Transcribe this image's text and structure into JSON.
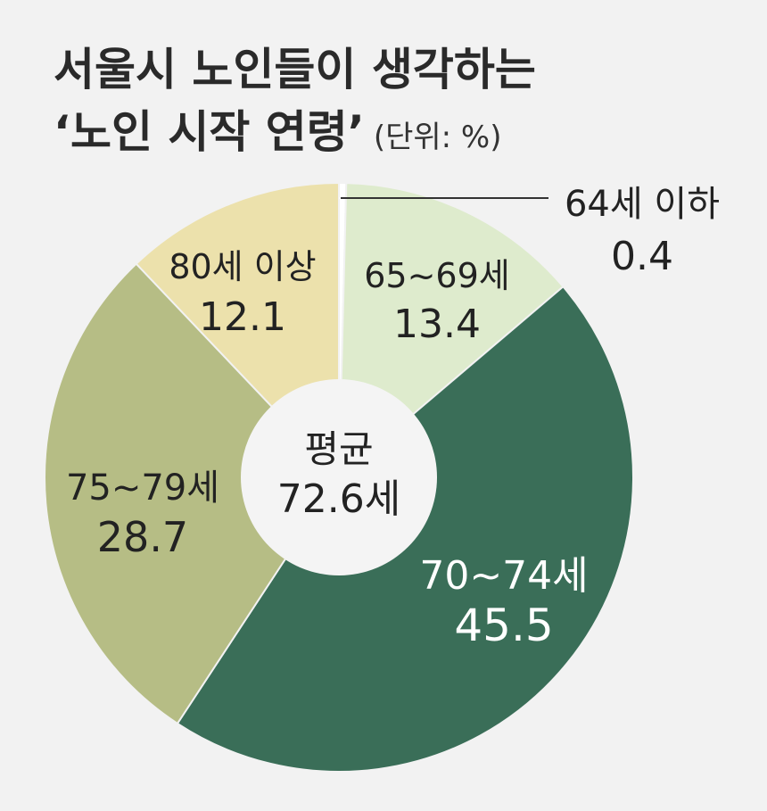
{
  "title_line1": "서울시 노인들이 생각하는",
  "title_line2": "‘노인 시작 연령’",
  "unit": "(단위: %)",
  "center": {
    "line1": "평균",
    "line2": "72.6세"
  },
  "chart_data": {
    "type": "pie",
    "title": "서울시 노인들이 생각하는 ‘노인 시작 연령’",
    "unit": "(단위: %)",
    "categories": [
      "64세 이하",
      "65~69세",
      "70~74세",
      "75~79세",
      "80세 이상"
    ],
    "values": [
      0.4,
      13.4,
      45.5,
      28.7,
      12.1
    ],
    "value_labels": [
      "0.4",
      "13.4",
      "45.5",
      "28.7",
      "12.1"
    ],
    "colors": [
      "#ffffff",
      "#deebcd",
      "#3a6e58",
      "#b6bd85",
      "#ece1ac"
    ],
    "label_colors": [
      "#222222",
      "#222222",
      "#ffffff",
      "#222222",
      "#222222"
    ],
    "donut_center_text": "평균 72.6세"
  }
}
